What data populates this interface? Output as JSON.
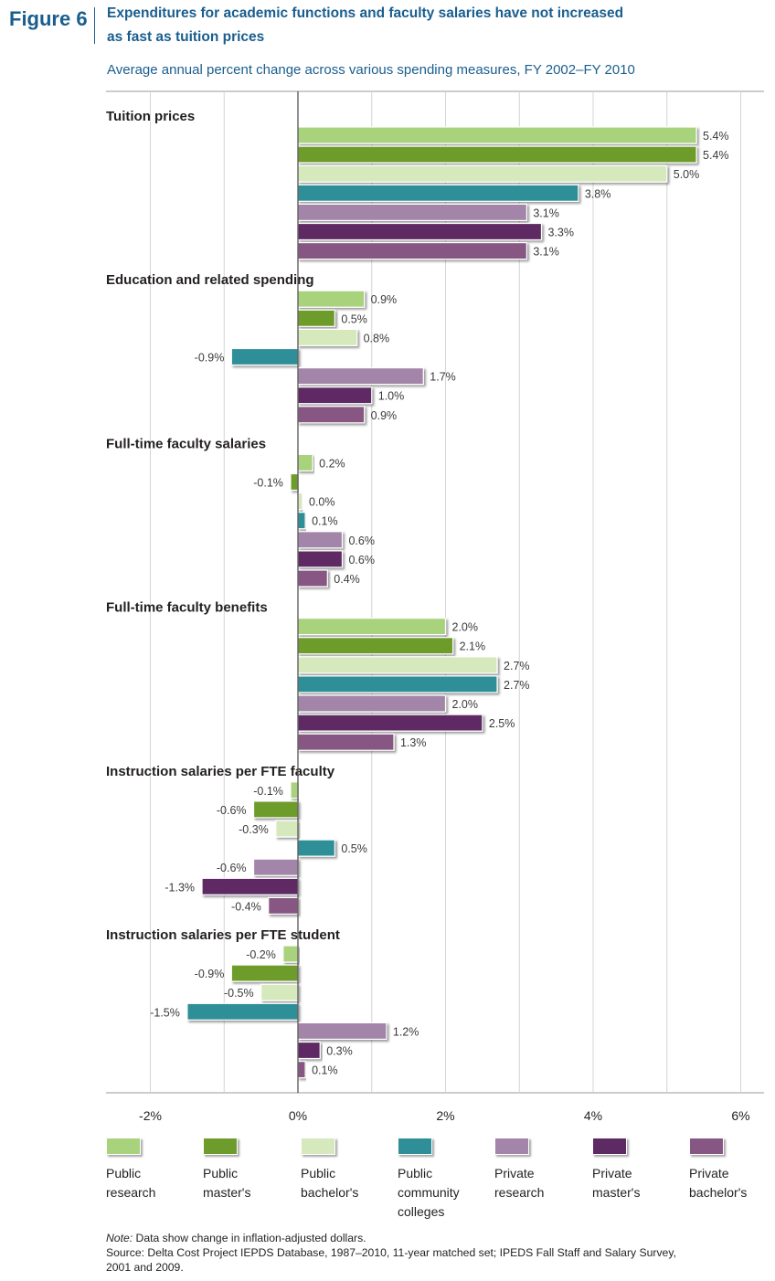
{
  "figure": {
    "label": "Figure 6",
    "title_line1": "Expenditures for academic functions and faculty salaries have not increased",
    "title_line2": "as fast as tuition prices",
    "subtitle": "Average annual percent change across various spending measures, FY 2002–FY 2010"
  },
  "colors": [
    "#a8d27c",
    "#6d9c2c",
    "#d6e9bd",
    "#2f8f98",
    "#a285a8",
    "#5e2a63",
    "#875783"
  ],
  "chart_data": {
    "type": "bar",
    "orientation": "horizontal",
    "title": "Expenditures for academic functions and faculty salaries have not increased as fast as tuition prices",
    "subtitle": "Average annual percent change across various spending measures, FY 2002–FY 2010",
    "xlim": [
      -2.6,
      6.2
    ],
    "x_ticks": [
      -2,
      0,
      2,
      4,
      6
    ],
    "x_tick_labels": [
      "-2%",
      "0%",
      "2%",
      "4%",
      "6%"
    ],
    "grid": "vertical",
    "legend_position": "bottom",
    "series_names": [
      "Public research",
      "Public master's",
      "Public bachelor's",
      "Public community colleges",
      "Private research",
      "Private master's",
      "Private bachelor's"
    ],
    "groups": [
      {
        "name": "Tuition prices",
        "values": [
          5.4,
          5.4,
          5.0,
          3.8,
          3.1,
          3.3,
          3.1
        ],
        "labels": [
          "5.4%",
          "5.4%",
          "5.0%",
          "3.8%",
          "3.1%",
          "3.3%",
          "3.1%"
        ]
      },
      {
        "name": "Education and related spending",
        "values": [
          0.9,
          0.5,
          0.8,
          -0.9,
          1.7,
          1.0,
          0.9
        ],
        "labels": [
          "0.9%",
          "0.5%",
          "0.8%",
          "-0.9%",
          "1.7%",
          "1.0%",
          "0.9%"
        ]
      },
      {
        "name": "Full-time faculty salaries",
        "values": [
          0.2,
          -0.1,
          0.0,
          0.1,
          0.6,
          0.6,
          0.4
        ],
        "labels": [
          "0.2%",
          "-0.1%",
          "0.0%",
          "0.1%",
          "0.6%",
          "0.6%",
          "0.4%"
        ]
      },
      {
        "name": "Full-time faculty benefits",
        "values": [
          2.0,
          2.1,
          2.7,
          2.7,
          2.0,
          2.5,
          1.3
        ],
        "labels": [
          "2.0%",
          "2.1%",
          "2.7%",
          "2.7%",
          "2.0%",
          "2.5%",
          "1.3%"
        ]
      },
      {
        "name": "Instruction salaries per FTE faculty",
        "values": [
          -0.1,
          -0.6,
          -0.3,
          0.5,
          -0.6,
          -1.3,
          -0.4
        ],
        "labels": [
          "-0.1%",
          "-0.6%",
          "-0.3%",
          "0.5%",
          "-0.6%",
          "-1.3%",
          "-0.4%"
        ]
      },
      {
        "name": "Instruction salaries per FTE student",
        "values": [
          -0.2,
          -0.9,
          -0.5,
          -1.5,
          1.2,
          0.3,
          0.1
        ],
        "labels": [
          "-0.2%",
          "-0.9%",
          "-0.5%",
          "-1.5%",
          "1.2%",
          "0.3%",
          "0.1%"
        ]
      }
    ]
  },
  "legend": [
    {
      "lines": [
        "Public",
        "research"
      ]
    },
    {
      "lines": [
        "Public",
        "master's"
      ]
    },
    {
      "lines": [
        "Public",
        "bachelor's"
      ]
    },
    {
      "lines": [
        "Public",
        "community",
        "colleges"
      ]
    },
    {
      "lines": [
        "Private",
        "research"
      ]
    },
    {
      "lines": [
        "Private",
        "master's"
      ]
    },
    {
      "lines": [
        "Private",
        "bachelor's"
      ]
    }
  ],
  "notes": {
    "note_prefix": "Note:",
    "note_text": " Data show change in inflation-adjusted dollars.",
    "source_line1": "Source: Delta Cost Project IEPDS Database, 1987–2010, 11-year matched set; IPEDS Fall Staff and Salary Survey,",
    "source_line2": "2001 and 2009."
  }
}
